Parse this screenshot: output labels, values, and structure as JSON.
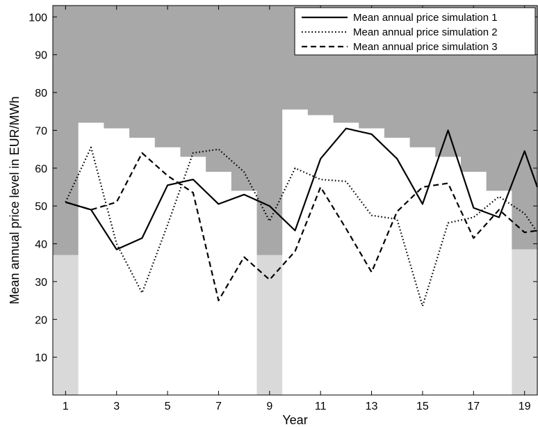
{
  "chart_data": {
    "type": "line",
    "xlabel": "Year",
    "ylabel": "Mean annual price level in EUR/MWh",
    "xlim": [
      0.5,
      19.5
    ],
    "ylim": [
      0,
      103
    ],
    "x_ticks": [
      1,
      3,
      5,
      7,
      9,
      11,
      13,
      15,
      17,
      19
    ],
    "y_ticks": [
      10,
      20,
      30,
      40,
      50,
      60,
      70,
      80,
      90,
      100
    ],
    "grid": false,
    "legend_position": "top-right",
    "background_bands": {
      "above_color": "#a8a8a8",
      "middle_color": "#ffffff",
      "lower_color": "#d9d9d9",
      "upper_bound": [
        37,
        72,
        70.5,
        68,
        65.5,
        63,
        59,
        54,
        37,
        75.5,
        74,
        72,
        70.5,
        68,
        65.5,
        63,
        59,
        54,
        38.5
      ],
      "lower_bound": [
        37,
        0,
        0,
        0,
        0,
        0,
        0,
        0,
        37,
        0,
        0,
        0,
        0,
        0,
        0,
        0,
        0,
        0,
        38.5
      ]
    },
    "x": [
      1,
      2,
      3,
      4,
      5,
      6,
      7,
      8,
      9,
      10,
      11,
      12,
      13,
      14,
      15,
      16,
      17,
      18,
      19,
      19.5
    ],
    "series": [
      {
        "name": "Mean annual price simulation 1",
        "style": "solid",
        "values": [
          51,
          49,
          38.5,
          41.5,
          55.5,
          57,
          50.5,
          53,
          50,
          43.5,
          62.5,
          70.5,
          69,
          62.5,
          50.5,
          70,
          49.5,
          47,
          64.5,
          55
        ]
      },
      {
        "name": "Mean annual price simulation 2",
        "style": "dotted",
        "values": [
          51,
          65.5,
          40,
          27,
          45,
          64,
          65,
          59,
          46,
          60,
          57,
          56.5,
          47.5,
          46.5,
          23.5,
          45.5,
          47,
          52.5,
          48,
          43
        ]
      },
      {
        "name": "Mean annual price simulation 3",
        "style": "dashed",
        "values": [
          51,
          49,
          51,
          64,
          58,
          53.5,
          25,
          36.5,
          30.5,
          38,
          55,
          44,
          32.5,
          48.5,
          55,
          56,
          41.5,
          49,
          43,
          43.5
        ]
      }
    ]
  }
}
